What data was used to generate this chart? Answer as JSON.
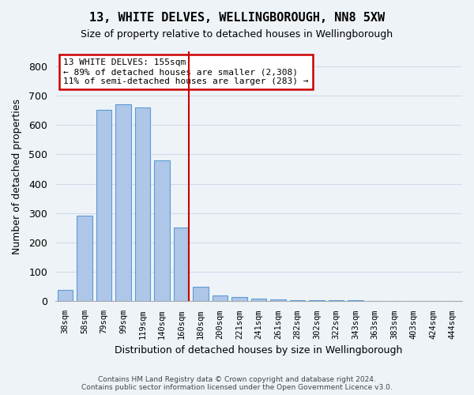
{
  "title": "13, WHITE DELVES, WELLINGBOROUGH, NN8 5XW",
  "subtitle": "Size of property relative to detached houses in Wellingborough",
  "xlabel": "Distribution of detached houses by size in Wellingborough",
  "ylabel": "Number of detached properties",
  "footer1": "Contains HM Land Registry data © Crown copyright and database right 2024.",
  "footer2": "Contains public sector information licensed under the Open Government Licence v3.0.",
  "annotation_line1": "13 WHITE DELVES: 155sqm",
  "annotation_line2": "← 89% of detached houses are smaller (2,308)",
  "annotation_line3": "11% of semi-detached houses are larger (283) →",
  "highlight_index": 6,
  "categories": [
    "38sqm",
    "58sqm",
    "79sqm",
    "99sqm",
    "119sqm",
    "140sqm",
    "160sqm",
    "180sqm",
    "200sqm",
    "221sqm",
    "241sqm",
    "261sqm",
    "282sqm",
    "302sqm",
    "322sqm",
    "343sqm",
    "363sqm",
    "383sqm",
    "403sqm",
    "424sqm",
    "444sqm"
  ],
  "values": [
    40,
    290,
    650,
    670,
    660,
    480,
    250,
    50,
    20,
    15,
    10,
    7,
    5,
    5,
    3,
    3,
    2,
    2,
    1,
    1,
    1
  ],
  "bar_color": "#aec6e8",
  "bar_edge_color": "#5b9bd5",
  "red_line_color": "#cc0000",
  "annotation_box_edge": "#cc0000",
  "annotation_box_face": "#ffffff",
  "grid_color": "#d0dce8",
  "background_color": "#eef3f8",
  "ylim": [
    0,
    850
  ],
  "yticks": [
    0,
    100,
    200,
    300,
    400,
    500,
    600,
    700,
    800
  ]
}
